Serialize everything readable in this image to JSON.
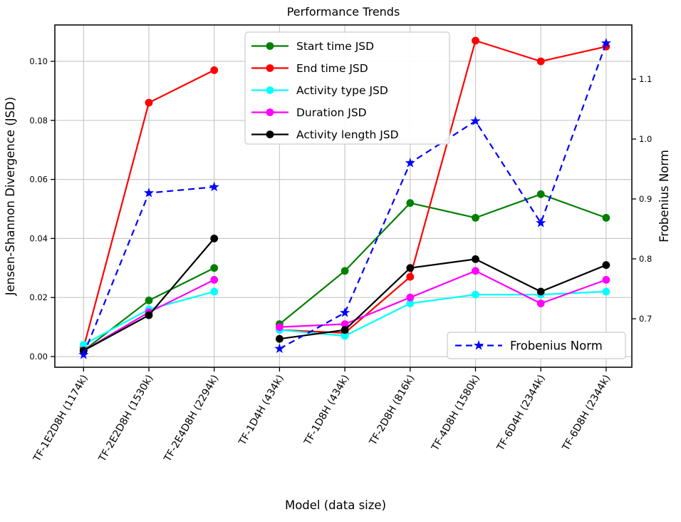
{
  "chart_data": {
    "type": "line",
    "title": "Performance Trends",
    "xlabel": "Model (data size)",
    "ylabel_left": "Jensen-Shannon Divergence (JSD)",
    "ylabel_right": "Frobenius Norm",
    "grid": true,
    "categories": [
      "TF-1E2D8H (1174k)",
      "TF-2E2D8H (1530k)",
      "TF-2E4D8H (2294k)",
      "TF-1D4H (434k)",
      "TF-1D8H (434k)",
      "TF-2D8H (816k)",
      "TF-4D8H (1580k)",
      "TF-6D4H (2344k)",
      "TF-6D8H (2344k)"
    ],
    "gap_after_index": 2,
    "left_axis": {
      "ticks": [
        0.0,
        0.02,
        0.04,
        0.06,
        0.08,
        0.1
      ],
      "lim": [
        -0.004,
        0.112
      ]
    },
    "right_axis": {
      "ticks": [
        0.7,
        0.8,
        0.9,
        1.0,
        1.1
      ],
      "lim": [
        0.62,
        1.19
      ]
    },
    "series": [
      {
        "name": "Start time JSD",
        "color": "#008000",
        "axis": "left",
        "marker": "circle",
        "style": "solid",
        "values": [
          0.002,
          0.019,
          0.03,
          0.011,
          0.029,
          0.052,
          0.047,
          0.055,
          0.047
        ]
      },
      {
        "name": "End time JSD",
        "color": "#ff0000",
        "axis": "left",
        "marker": "circle",
        "style": "solid",
        "values": [
          0.003,
          0.086,
          0.097,
          0.009,
          0.008,
          0.027,
          0.107,
          0.1,
          0.105
        ]
      },
      {
        "name": "Activity type JSD",
        "color": "#00ffff",
        "axis": "left",
        "marker": "circle",
        "style": "solid",
        "values": [
          0.004,
          0.016,
          0.022,
          0.009,
          0.007,
          0.018,
          0.021,
          0.021,
          0.022
        ]
      },
      {
        "name": "Duration JSD",
        "color": "#ff00ff",
        "axis": "left",
        "marker": "circle",
        "style": "solid",
        "values": [
          0.002,
          0.015,
          0.026,
          0.01,
          0.011,
          0.02,
          0.029,
          0.018,
          0.026
        ]
      },
      {
        "name": "Activity length JSD",
        "color": "#000000",
        "axis": "left",
        "marker": "circle",
        "style": "solid",
        "values": [
          0.002,
          0.014,
          0.04,
          0.006,
          0.009,
          0.03,
          0.033,
          0.022,
          0.031
        ]
      },
      {
        "name": "Frobenius Norm",
        "color": "#0000ff",
        "axis": "right",
        "marker": "star",
        "style": "dashed",
        "values": [
          0.64,
          0.91,
          0.92,
          0.65,
          0.71,
          0.96,
          1.03,
          0.86,
          1.16
        ]
      }
    ],
    "legend_main": {
      "position": "upper center",
      "entries": [
        "Start time JSD",
        "End time JSD",
        "Activity type JSD",
        "Duration JSD",
        "Activity length JSD"
      ]
    },
    "legend_frobenius": {
      "position": "lower right",
      "label": "Frobenius Norm"
    }
  }
}
